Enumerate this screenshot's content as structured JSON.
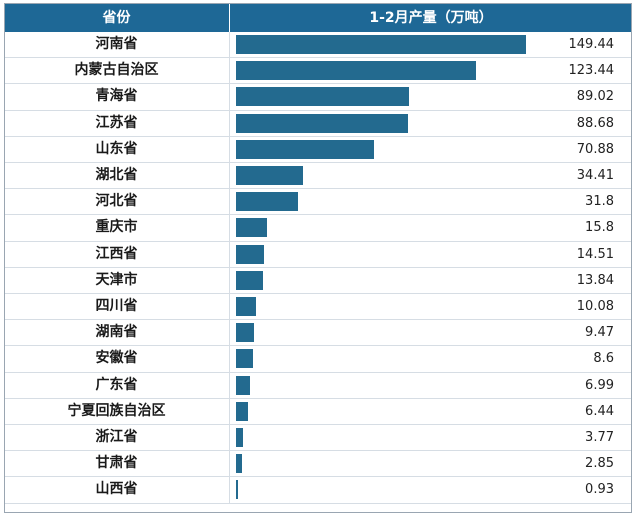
{
  "table": {
    "header_province": "省份",
    "header_value": "1-2月产量（万吨）"
  },
  "chart_data": {
    "type": "bar",
    "orientation": "horizontal",
    "categories": [
      "河南省",
      "内蒙古自治区",
      "青海省",
      "江苏省",
      "山东省",
      "湖北省",
      "河北省",
      "重庆市",
      "江西省",
      "天津市",
      "四川省",
      "湖南省",
      "安徽省",
      "广东省",
      "宁夏回族自治区",
      "浙江省",
      "甘肃省",
      "山西省"
    ],
    "values": [
      149.44,
      123.44,
      89.02,
      88.68,
      70.88,
      34.41,
      31.8,
      15.8,
      14.51,
      13.84,
      10.08,
      9.47,
      8.6,
      6.99,
      6.44,
      3.77,
      2.85,
      0.93
    ],
    "value_labels": [
      "149.44",
      "123.44",
      "89.02",
      "88.68",
      "70.88",
      "34.41",
      "31.8",
      "15.8",
      "14.51",
      "13.84",
      "10.08",
      "9.47",
      "8.6",
      "6.99",
      "6.44",
      "3.77",
      "2.85",
      "0.93"
    ],
    "bar_color": "#236a8f",
    "header_color": "#1e6896"
  }
}
